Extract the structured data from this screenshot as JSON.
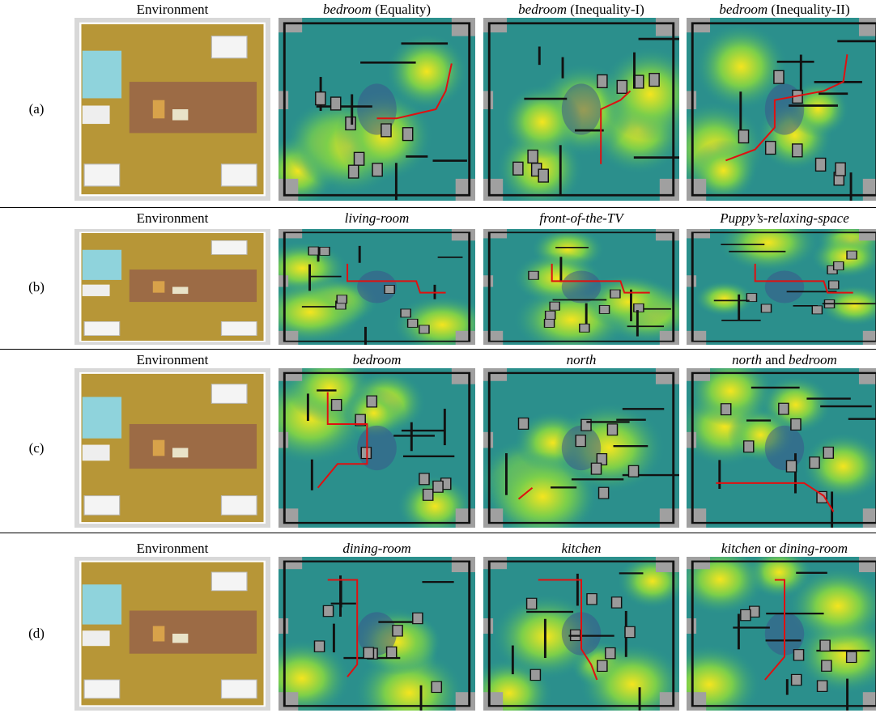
{
  "rows": [
    {
      "label": "(a)",
      "panels": [
        {
          "title": [
            {
              "text": "Environment"
            }
          ]
        },
        {
          "title": [
            {
              "text": "bedroom",
              "italic": true
            },
            {
              "text": " (Equality)"
            }
          ]
        },
        {
          "title": [
            {
              "text": "bedroom",
              "italic": true
            },
            {
              "text": " (Inequality-I)"
            }
          ]
        },
        {
          "title": [
            {
              "text": "bedroom",
              "italic": true
            },
            {
              "text": " (Inequality-II)"
            }
          ]
        }
      ]
    },
    {
      "label": "(b)",
      "panels": [
        {
          "title": [
            {
              "text": "Environment"
            }
          ]
        },
        {
          "title": [
            {
              "text": "living-room",
              "italic": true
            }
          ]
        },
        {
          "title": [
            {
              "text": "front-of-the-TV",
              "italic": true
            }
          ]
        },
        {
          "title": [
            {
              "text": "Puppy’s-relaxing-space",
              "italic": true
            }
          ]
        }
      ]
    },
    {
      "label": "(c)",
      "panels": [
        {
          "title": [
            {
              "text": "Environment"
            }
          ]
        },
        {
          "title": [
            {
              "text": "bedroom",
              "italic": true
            }
          ]
        },
        {
          "title": [
            {
              "text": "north",
              "italic": true
            }
          ]
        },
        {
          "title": [
            {
              "text": "north",
              "italic": true
            },
            {
              "text": " and "
            },
            {
              "text": "bedroom",
              "italic": true
            }
          ]
        }
      ]
    },
    {
      "label": "(d)",
      "panels": [
        {
          "title": [
            {
              "text": "Environment"
            }
          ]
        },
        {
          "title": [
            {
              "text": "dining-room",
              "italic": true
            }
          ]
        },
        {
          "title": [
            {
              "text": "kitchen",
              "italic": true
            }
          ]
        },
        {
          "title": [
            {
              "text": "kitchen",
              "italic": true
            },
            {
              "text": " or "
            },
            {
              "text": "dining-room",
              "italic": true
            }
          ]
        }
      ]
    }
  ]
}
